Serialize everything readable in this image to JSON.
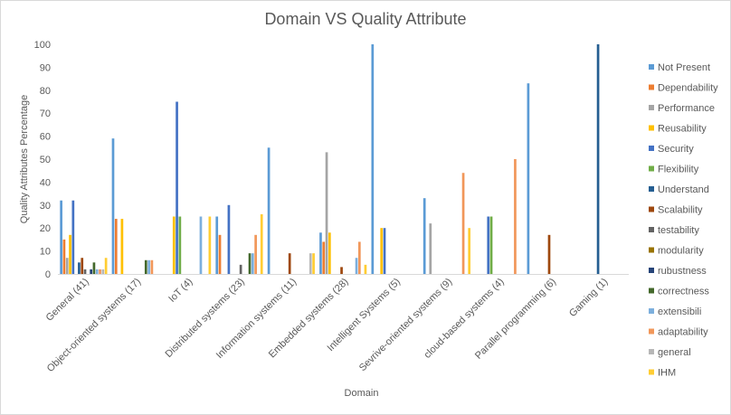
{
  "chart_data": {
    "type": "bar",
    "title": "Domain VS Quality Attribute",
    "xlabel": "Domain",
    "ylabel": "Quality Attributes Percentage",
    "ylim": [
      0,
      100
    ],
    "yticks": [
      0,
      10,
      20,
      30,
      40,
      50,
      60,
      70,
      80,
      90,
      100
    ],
    "grid": false,
    "legend_position": "right",
    "categories": [
      "General (41)",
      "Object-oriented systems (17)",
      "IoT (4)",
      "Distributed systems (23)",
      "Information systems (11)",
      "Embedded systems (28)",
      "Intelligent Systems (5)",
      "Sevrive-oriented systems (9)",
      "cloud-based systems (4)",
      "Parallel programming (6)",
      "Gaming (1)"
    ],
    "series": [
      {
        "name": "Not Present",
        "color": "#5b9bd5",
        "values": [
          32,
          59,
          0,
          25,
          55,
          18,
          100,
          33,
          0,
          83,
          0
        ]
      },
      {
        "name": "Dependability",
        "color": "#ed7d31",
        "values": [
          15,
          24,
          0,
          17,
          0,
          14,
          0,
          0,
          0,
          0,
          0
        ]
      },
      {
        "name": "Performance",
        "color": "#a5a5a5",
        "values": [
          7,
          0,
          0,
          0,
          0,
          53,
          0,
          22,
          0,
          0,
          0
        ]
      },
      {
        "name": "Reusability",
        "color": "#ffc000",
        "values": [
          17,
          24,
          25,
          0,
          0,
          18,
          20,
          0,
          0,
          0,
          0
        ]
      },
      {
        "name": "Security",
        "color": "#4472c4",
        "values": [
          32,
          0,
          75,
          30,
          0,
          0,
          20,
          0,
          25,
          0,
          0
        ]
      },
      {
        "name": "Flexibility",
        "color": "#70ad47",
        "values": [
          0,
          0,
          25,
          0,
          0,
          0,
          0,
          0,
          25,
          0,
          0
        ]
      },
      {
        "name": "Understand",
        "color": "#255e91",
        "values": [
          5,
          0,
          0,
          0,
          0,
          0,
          0,
          0,
          0,
          0,
          100
        ]
      },
      {
        "name": "Scalability",
        "color": "#9e480e",
        "values": [
          7,
          0,
          0,
          0,
          9,
          3,
          0,
          0,
          0,
          17,
          0
        ]
      },
      {
        "name": "testability",
        "color": "#636363",
        "values": [
          2,
          0,
          0,
          4,
          0,
          0,
          0,
          0,
          0,
          0,
          0
        ]
      },
      {
        "name": "modularity",
        "color": "#997300",
        "values": [
          0,
          0,
          0,
          0,
          0,
          0,
          0,
          0,
          0,
          0,
          0
        ]
      },
      {
        "name": "rubustness",
        "color": "#264478",
        "values": [
          2,
          0,
          0,
          0,
          0,
          0,
          0,
          0,
          0,
          0,
          0
        ]
      },
      {
        "name": "correctness",
        "color": "#43682b",
        "values": [
          5,
          6,
          0,
          9,
          0,
          0,
          0,
          0,
          0,
          0,
          0
        ]
      },
      {
        "name": "extensibili",
        "color": "#7cafdd",
        "values": [
          2,
          6,
          25,
          9,
          0,
          7,
          0,
          0,
          0,
          0,
          0
        ]
      },
      {
        "name": "adaptability",
        "color": "#f1975a",
        "values": [
          2,
          6,
          0,
          17,
          0,
          14,
          0,
          44,
          50,
          0,
          0
        ]
      },
      {
        "name": "general",
        "color": "#b7b7b7",
        "values": [
          2,
          0,
          0,
          0,
          9,
          0,
          0,
          0,
          0,
          0,
          0
        ]
      },
      {
        "name": "IHM",
        "color": "#ffcd33",
        "values": [
          7,
          0,
          25,
          26,
          9,
          4,
          0,
          20,
          0,
          0,
          0
        ]
      }
    ]
  }
}
